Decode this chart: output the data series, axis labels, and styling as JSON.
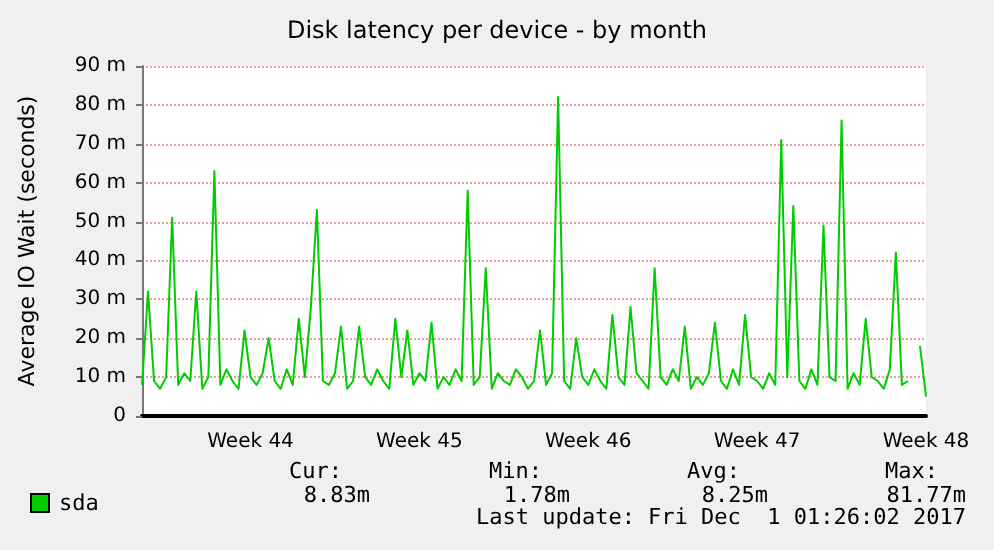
{
  "chart_data": {
    "type": "line",
    "title": "Disk latency per device - by month",
    "ylabel": "Average IO Wait (seconds)",
    "categories": [
      null,
      null,
      null,
      null,
      null,
      null,
      null,
      null,
      null,
      null,
      null,
      null,
      null,
      null,
      null,
      null,
      null,
      null,
      "Week 44",
      null,
      null,
      null,
      null,
      null,
      null,
      null,
      null,
      null,
      null,
      null,
      null,
      null,
      null,
      null,
      null,
      null,
      null,
      null,
      null,
      null,
      null,
      null,
      null,
      null,
      null,
      null,
      "Week 45",
      null,
      null,
      null,
      null,
      null,
      null,
      null,
      null,
      null,
      null,
      null,
      null,
      null,
      null,
      null,
      null,
      null,
      null,
      null,
      null,
      null,
      null,
      null,
      null,
      null,
      null,
      null,
      "Week 46",
      null,
      null,
      null,
      null,
      null,
      null,
      null,
      null,
      null,
      null,
      null,
      null,
      null,
      null,
      null,
      null,
      null,
      null,
      null,
      null,
      null,
      null,
      null,
      null,
      null,
      null,
      null,
      "Week 47",
      null,
      null,
      null,
      null,
      null,
      null,
      null,
      null,
      null,
      null,
      null,
      null,
      null,
      null,
      null,
      null,
      null,
      null,
      null,
      null,
      null,
      null,
      null,
      null,
      null,
      null,
      null,
      "Week 48"
    ],
    "ylim": [
      0,
      90
    ],
    "yticks": [
      0,
      {
        "value": 10,
        "label": "10 m"
      },
      {
        "value": 20,
        "label": "20 m"
      },
      {
        "value": 30,
        "label": "30 m"
      },
      {
        "value": 40,
        "label": "40 m"
      },
      {
        "value": 50,
        "label": "50 m"
      },
      {
        "value": 60,
        "label": "60 m"
      },
      {
        "value": 70,
        "label": "70 m"
      },
      {
        "value": 80,
        "label": "80 m"
      },
      {
        "value": 90,
        "label": "90 m"
      }
    ],
    "series": [
      {
        "name": "sda",
        "color": "#00cc00",
        "values": [
          8,
          32,
          9,
          7,
          10,
          51,
          8,
          11,
          9,
          32,
          7,
          10,
          63,
          8,
          12,
          9,
          7,
          22,
          10,
          8,
          11,
          20,
          9,
          7,
          12,
          8,
          25,
          10,
          28,
          53,
          9,
          8,
          11,
          23,
          7,
          9,
          23,
          10,
          8,
          12,
          9,
          7,
          25,
          10,
          22,
          8,
          11,
          9,
          24,
          7,
          10,
          8,
          12,
          9,
          58,
          8,
          10,
          38,
          7,
          11,
          9,
          8,
          12,
          10,
          7,
          9,
          22,
          8,
          11,
          82,
          9,
          7,
          20,
          10,
          8,
          12,
          9,
          7,
          26,
          10,
          8,
          28,
          11,
          9,
          7,
          38,
          10,
          8,
          12,
          9,
          23,
          7,
          10,
          8,
          11,
          24,
          9,
          7,
          12,
          8,
          26,
          10,
          9,
          7,
          11,
          8,
          71,
          10,
          54,
          9,
          7,
          12,
          8,
          49,
          10,
          9,
          76,
          7,
          11,
          8,
          25,
          10,
          9,
          7,
          12,
          42,
          8,
          9,
          null,
          18,
          5
        ]
      }
    ],
    "grid": "y",
    "legend": "bottom left",
    "annotations": [
      "Cur:",
      "Min:",
      "Avg:",
      "Max:",
      "8.83m",
      "1.78m",
      "8.25m",
      "81.77m",
      "Last update: Fri Dec  1 01:26:02 2017"
    ]
  }
}
